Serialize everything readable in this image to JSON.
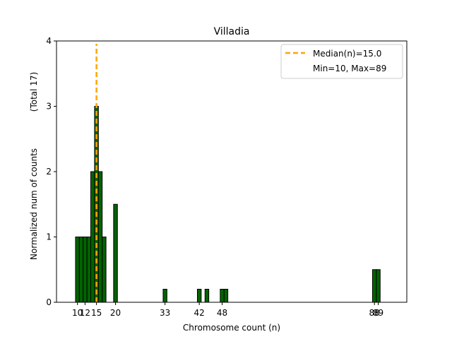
{
  "chart_data": {
    "type": "bar",
    "title": "Villadia",
    "xlabel": "Chromosome count (n)",
    "ylabel": "Normalized num of counts",
    "ylabel_note": "(Total 17)",
    "xlim": [
      4.5,
      96.5
    ],
    "ylim": [
      0,
      4
    ],
    "y_ticks": [
      0,
      1,
      2,
      3,
      4
    ],
    "x_ticks": [
      10,
      12,
      15,
      20,
      33,
      42,
      48,
      88,
      89
    ],
    "bars": [
      {
        "x": 10,
        "value": 1.0
      },
      {
        "x": 11,
        "value": 1.0
      },
      {
        "x": 12,
        "value": 1.0
      },
      {
        "x": 13,
        "value": 1.0
      },
      {
        "x": 14,
        "value": 2.0
      },
      {
        "x": 15,
        "value": 3.0
      },
      {
        "x": 16,
        "value": 2.0
      },
      {
        "x": 17,
        "value": 1.0
      },
      {
        "x": 20,
        "value": 1.5
      },
      {
        "x": 33,
        "value": 0.2
      },
      {
        "x": 42,
        "value": 0.2
      },
      {
        "x": 44,
        "value": 0.2
      },
      {
        "x": 48,
        "value": 0.2
      },
      {
        "x": 49,
        "value": 0.2
      },
      {
        "x": 88,
        "value": 0.5
      },
      {
        "x": 89,
        "value": 0.5
      }
    ],
    "bar_color": "#006400",
    "bar_edge_color": "#000000",
    "median": {
      "x": 15.0,
      "label": "Median(n)=15.0",
      "color": "#FFA500"
    },
    "legend": {
      "placement": "top-right",
      "range_label": "Min=10, Max=89"
    },
    "grid": false
  }
}
